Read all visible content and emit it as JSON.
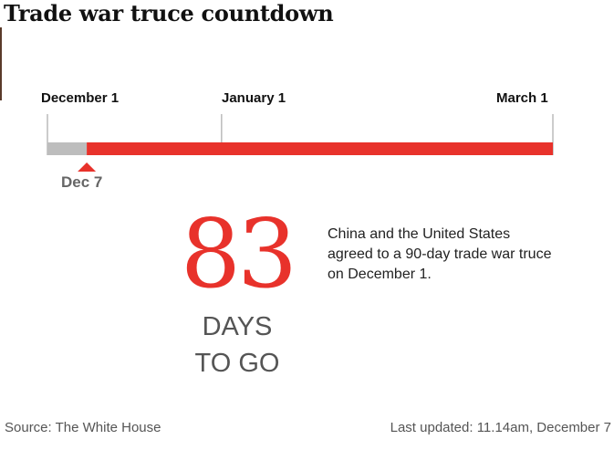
{
  "title": "Trade war truce countdown",
  "chart_data": {
    "type": "timeline",
    "start_date": "December 1",
    "end_date": "March 1",
    "ticks": [
      {
        "label": "December 1",
        "value": 0
      },
      {
        "label": "January 1",
        "value": 31
      },
      {
        "label": "March 1",
        "value": 90
      }
    ],
    "marker": {
      "label": "Dec 7",
      "value": 7
    },
    "elapsed_days": 7,
    "total_days": 90,
    "colors": {
      "elapsed": "#bdbdbd",
      "remaining": "#e8322b",
      "tick": "#bbbbbb"
    }
  },
  "countdown": {
    "number": "83",
    "unit_line1": "DAYS",
    "unit_line2": "TO GO",
    "color": "#e8322b"
  },
  "description": "China and the United States agreed to a 90-day trade war truce on December 1.",
  "footer": {
    "source": "Source: The White House",
    "updated": "Last updated: 11.14am, December 7"
  }
}
